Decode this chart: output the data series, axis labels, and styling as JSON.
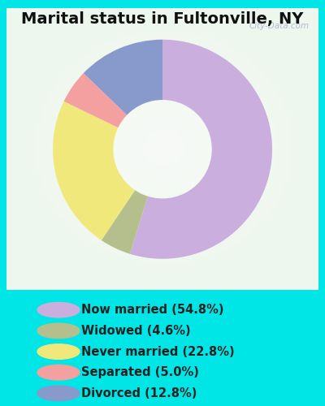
{
  "title": "Marital status in Fultonville, NY",
  "categories": [
    "Now married",
    "Widowed",
    "Never married",
    "Separated",
    "Divorced"
  ],
  "values": [
    54.8,
    4.6,
    22.8,
    5.0,
    12.8
  ],
  "colors": [
    "#c9aede",
    "#b5bf8e",
    "#f0e87a",
    "#f4a0a0",
    "#8899cc"
  ],
  "legend_labels": [
    "Now married (54.8%)",
    "Widowed (4.6%)",
    "Never married (22.8%)",
    "Separated (5.0%)",
    "Divorced (12.8%)"
  ],
  "legend_colors": [
    "#c9aede",
    "#b5bf8e",
    "#f0e87a",
    "#f4a0a0",
    "#8899cc"
  ],
  "bg_outer": "#00e5e5",
  "bg_chart_center": "#e8f5ed",
  "bg_chart_edge": "#cceee0",
  "watermark": "City-Data.com",
  "title_fontsize": 14,
  "legend_fontsize": 10.5,
  "donut_width": 0.55,
  "start_angle": 90
}
